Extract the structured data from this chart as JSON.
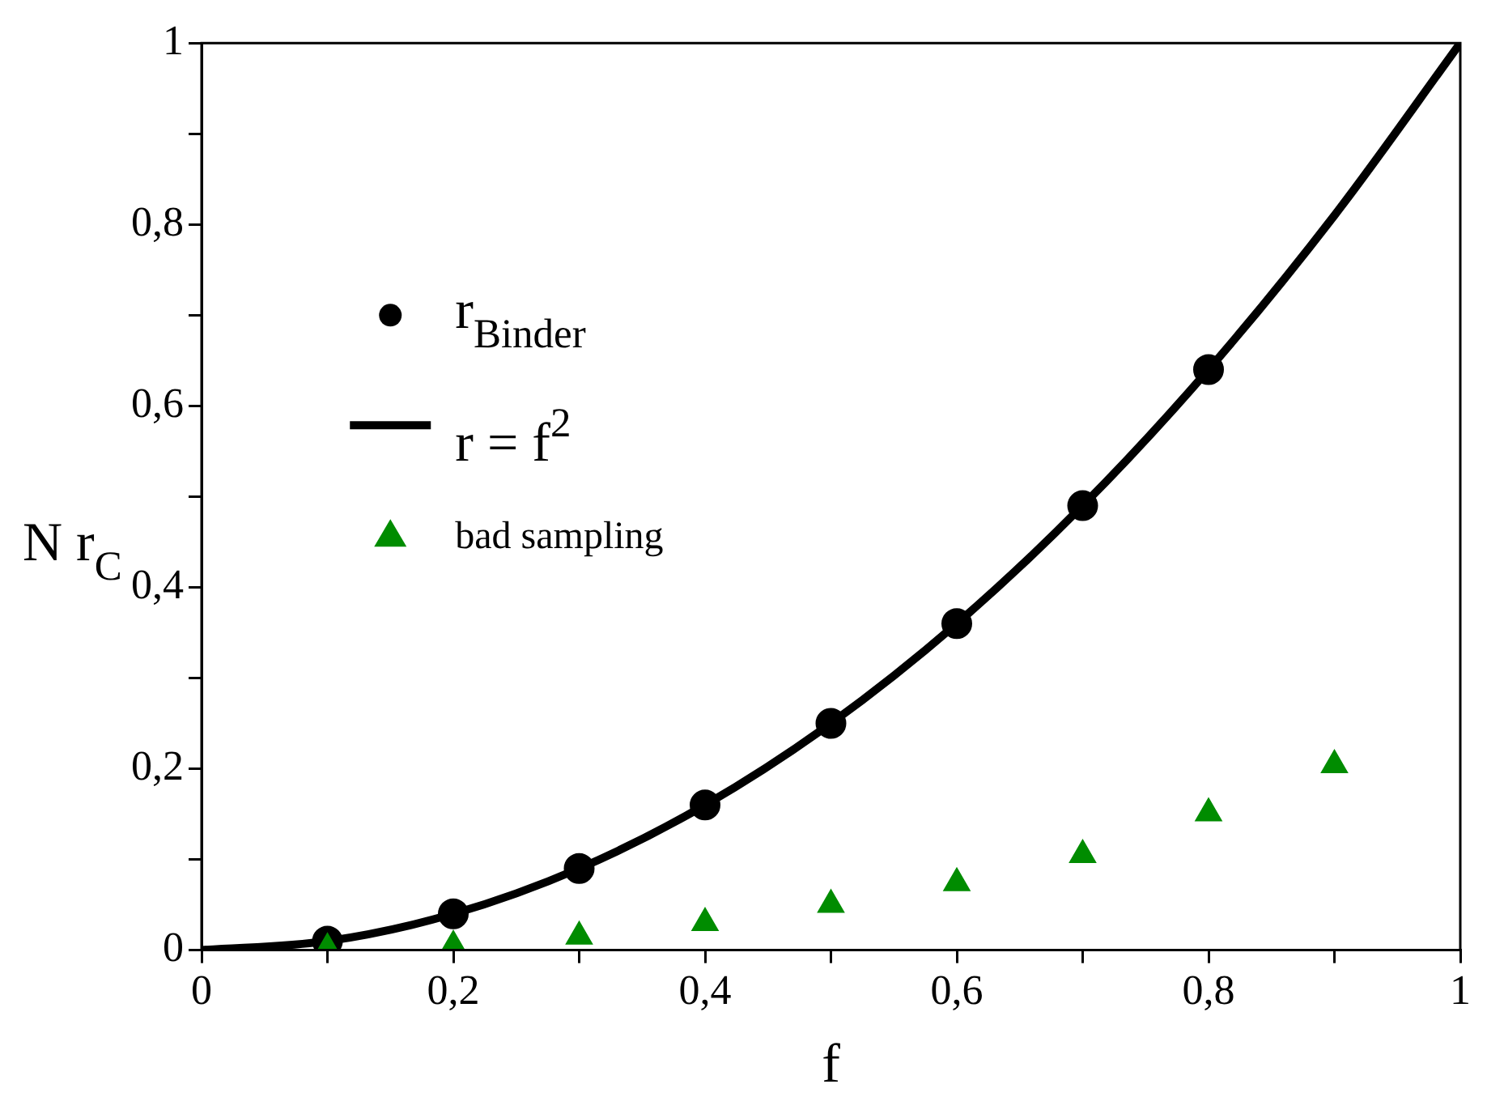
{
  "chart_data": {
    "type": "scatter",
    "xlabel": "f",
    "ylabel": "N r$_{C}$",
    "xlim": [
      0,
      1
    ],
    "ylim": [
      0,
      1
    ],
    "xticks": [
      0,
      {
        "value": 0.1,
        "label": null
      },
      {
        "value": 0.2,
        "label": "0,2"
      },
      {
        "value": 0.3,
        "label": null
      },
      {
        "value": 0.4,
        "label": "0,4"
      },
      {
        "value": 0.5,
        "label": null
      },
      {
        "value": 0.6,
        "label": "0,6"
      },
      {
        "value": 0.7,
        "label": null
      },
      {
        "value": 0.8,
        "label": "0,8"
      },
      {
        "value": 0.9,
        "label": null
      },
      1
    ],
    "yticks": [
      0,
      {
        "value": 0.1,
        "label": null
      },
      {
        "value": 0.2,
        "label": "0,2"
      },
      {
        "value": 0.3,
        "label": null
      },
      {
        "value": 0.4,
        "label": "0,4"
      },
      {
        "value": 0.5,
        "label": null
      },
      {
        "value": 0.6,
        "label": "0,6"
      },
      {
        "value": 0.7,
        "label": null
      },
      {
        "value": 0.8,
        "label": "0,8"
      },
      {
        "value": 0.9,
        "label": null
      },
      1
    ],
    "grid": false,
    "legend": "top left",
    "series": [
      {
        "name": "r$_{Binder}$",
        "type": "scatter",
        "marker": "circle",
        "color": "#000000",
        "x": [
          0.1,
          0.2,
          0.3,
          0.4,
          0.5,
          0.6,
          0.7,
          0.8
        ],
        "values": [
          0.01,
          0.04,
          0.09,
          0.16,
          0.25,
          0.36,
          0.49,
          0.64
        ]
      },
      {
        "name": "r = f$^{2}$",
        "type": "line",
        "marker": "none",
        "line_style": "solid",
        "color": "#000000",
        "x": [
          0,
          0.1,
          0.2,
          0.3,
          0.4,
          0.5,
          0.6,
          0.7,
          0.8,
          0.9,
          1
        ],
        "values": [
          0,
          0.01,
          0.04,
          0.09,
          0.16,
          0.25,
          0.36,
          0.49,
          0.64,
          0.81,
          1
        ]
      },
      {
        "name": "bad sampling",
        "type": "scatter",
        "marker": "triangle",
        "color": "#008c00",
        "x": [
          0.1,
          0.2,
          0.3,
          0.4,
          0.5,
          0.6,
          0.7,
          0.8,
          0.9
        ],
        "values": [
          0.002,
          0.005,
          0.015,
          0.03,
          0.05,
          0.074,
          0.105,
          0.151,
          0.204
        ]
      }
    ]
  }
}
